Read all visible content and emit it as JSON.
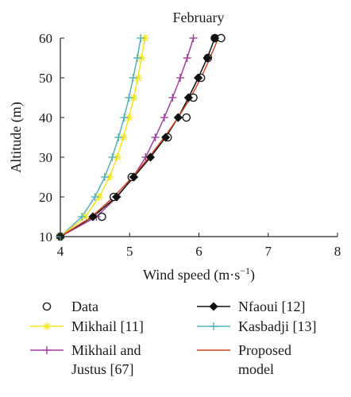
{
  "chart_data": {
    "type": "line",
    "title": "February",
    "xlabel_main": "Wind speed (m·s",
    "xlabel_sup": "−1",
    "xlabel_close": ")",
    "ylabel": "Altitude (m)",
    "xlim": [
      4,
      8
    ],
    "ylim": [
      10,
      60
    ],
    "xticks": [
      4,
      5,
      6,
      7,
      8
    ],
    "yticks": [
      10,
      20,
      30,
      40,
      50,
      60
    ],
    "grid": false,
    "legend_position": "bottom",
    "series": [
      {
        "name": "Data",
        "marker": "open-circle",
        "line": false,
        "color": "#1a1a1a",
        "x": [
          4.0,
          4.6,
          4.77,
          5.03,
          5.55,
          5.82,
          5.92,
          6.03,
          6.13,
          6.23,
          6.32
        ],
        "y": [
          10,
          15,
          20,
          25,
          35,
          40,
          45,
          50,
          55,
          60,
          60
        ]
      },
      {
        "name": "Mikhail [11]",
        "marker": "asterisk",
        "line": true,
        "color": "#f2e51c",
        "x": [
          4.0,
          4.36,
          4.56,
          4.71,
          4.82,
          4.91,
          4.99,
          5.06,
          5.12,
          5.17,
          5.22
        ],
        "y": [
          10,
          15,
          20,
          25,
          30,
          35,
          40,
          45,
          50,
          55,
          60
        ]
      },
      {
        "name": "Mikhail and Justus [67]",
        "marker": "plus",
        "line": true,
        "color": "#a43fa0",
        "x": [
          4.0,
          4.52,
          4.82,
          5.05,
          5.23,
          5.37,
          5.5,
          5.62,
          5.73,
          5.83,
          5.92
        ],
        "y": [
          10,
          15,
          20,
          25,
          30,
          35,
          40,
          45,
          50,
          55,
          60
        ]
      },
      {
        "name": "Nfaoui [12]",
        "marker": "filled-diamond",
        "line": true,
        "color": "#111111",
        "x": [
          4.0,
          4.47,
          4.81,
          5.06,
          5.3,
          5.52,
          5.7,
          5.85,
          5.99,
          6.12,
          6.23
        ],
        "y": [
          10,
          15,
          20,
          25,
          30,
          35,
          40,
          45,
          50,
          55,
          60
        ]
      },
      {
        "name": "Kasbadji [13]",
        "marker": "plus",
        "line": true,
        "color": "#4fb3b7",
        "x": [
          4.0,
          4.31,
          4.5,
          4.64,
          4.75,
          4.84,
          4.92,
          4.99,
          5.05,
          5.11,
          5.16
        ],
        "y": [
          10,
          15,
          20,
          25,
          30,
          35,
          40,
          45,
          50,
          55,
          60
        ]
      },
      {
        "name": "Proposed model",
        "marker": "none",
        "line": true,
        "color": "#d2451e",
        "x": [
          4.0,
          4.45,
          4.77,
          5.04,
          5.28,
          5.5,
          5.7,
          5.88,
          6.03,
          6.16,
          6.28
        ],
        "y": [
          10,
          15,
          20,
          25,
          30,
          35,
          40,
          45,
          50,
          55,
          60
        ]
      }
    ],
    "legend": [
      {
        "series": 0,
        "lines": [
          "Data"
        ]
      },
      {
        "series": 3,
        "lines": [
          "Nfaoui [12]"
        ]
      },
      {
        "series": 1,
        "lines": [
          "Mikhail [11]"
        ]
      },
      {
        "series": 4,
        "lines": [
          "Kasbadji [13]"
        ]
      },
      {
        "series": 2,
        "lines": [
          "Mikhail and",
          "Justus [67]"
        ]
      },
      {
        "series": 5,
        "lines": [
          "Proposed",
          "model"
        ]
      }
    ]
  }
}
